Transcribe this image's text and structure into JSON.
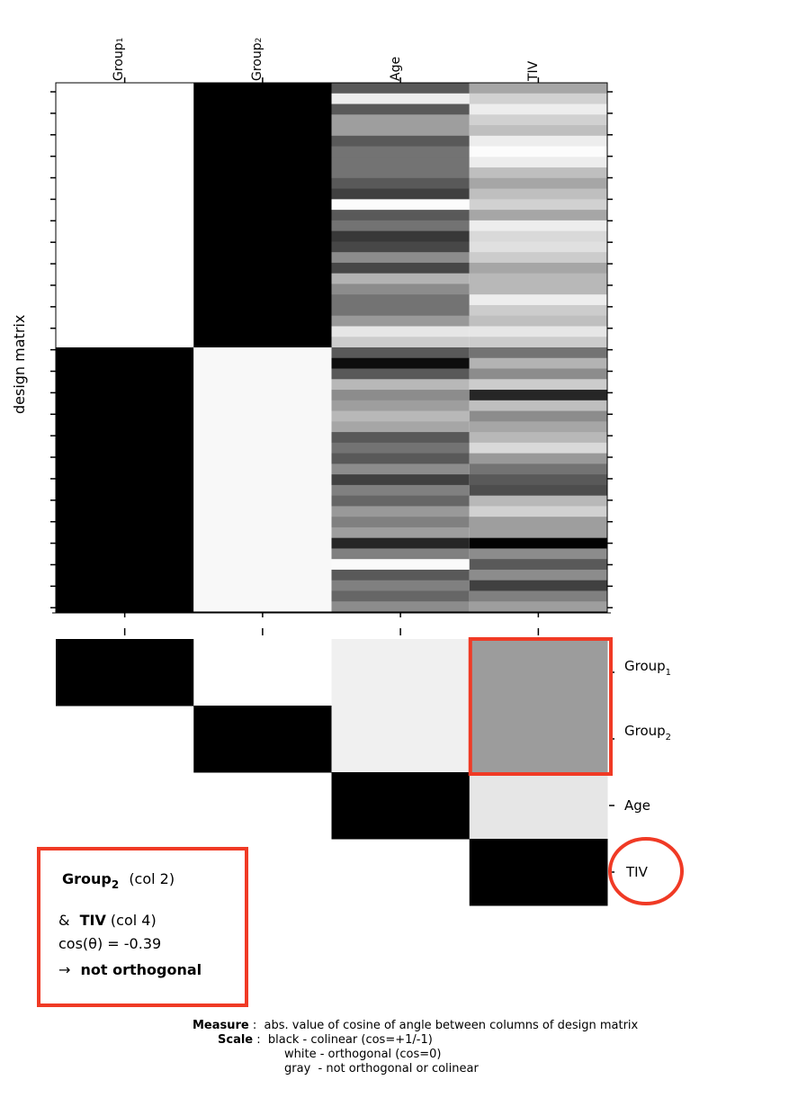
{
  "figure": {
    "y_axis_label": "design matrix",
    "columns": [
      {
        "name": "Group",
        "subscript": "1"
      },
      {
        "name": "Group",
        "subscript": "2"
      },
      {
        "name": "Age",
        "subscript": ""
      },
      {
        "name": "TIV",
        "subscript": ""
      }
    ],
    "row_labels": [
      {
        "name": "Group",
        "subscript": "1"
      },
      {
        "name": "Group",
        "subscript": "2"
      },
      {
        "name": "Age",
        "subscript": ""
      },
      {
        "name": "TIV",
        "subscript": ""
      }
    ]
  },
  "chart_data": {
    "type": "heatmap",
    "design_matrix": {
      "rows": 50,
      "group_split_row": 25,
      "age_gray": [
        0.35,
        0.93,
        0.35,
        0.62,
        0.62,
        0.35,
        0.45,
        0.45,
        0.45,
        0.35,
        0.25,
        0.99,
        0.35,
        0.45,
        0.22,
        0.28,
        0.55,
        0.28,
        0.7,
        0.55,
        0.45,
        0.45,
        0.6,
        0.9,
        0.8,
        0.35,
        0.05,
        0.35,
        0.72,
        0.55,
        0.62,
        0.72,
        0.65,
        0.35,
        0.45,
        0.35,
        0.55,
        0.25,
        0.5,
        0.4,
        0.6,
        0.5,
        0.62,
        0.15,
        0.5,
        0.98,
        0.35,
        0.5,
        0.4,
        0.55
      ],
      "tiv_gray": [
        0.65,
        0.82,
        0.93,
        0.82,
        0.75,
        0.93,
        0.99,
        0.93,
        0.75,
        0.65,
        0.75,
        0.82,
        0.65,
        0.93,
        0.85,
        0.88,
        0.8,
        0.65,
        0.72,
        0.72,
        0.93,
        0.8,
        0.75,
        0.9,
        0.8,
        0.45,
        0.7,
        0.55,
        0.8,
        0.15,
        0.75,
        0.55,
        0.65,
        0.72,
        0.85,
        0.6,
        0.45,
        0.35,
        0.3,
        0.72,
        0.82,
        0.62,
        0.62,
        0.01,
        0.55,
        0.35,
        0.55,
        0.25,
        0.5,
        0.62
      ]
    },
    "orthogonality": {
      "matrix": [
        [
          1,
          0,
          0.06,
          0.39
        ],
        [
          null,
          1,
          0.06,
          0.39
        ],
        [
          null,
          null,
          1,
          0.1
        ],
        [
          null,
          null,
          null,
          1
        ]
      ]
    },
    "highlight_cell": {
      "row": 1,
      "col": 3,
      "rows_spanned": [
        0,
        1
      ]
    }
  },
  "annotation": {
    "line1_name": "Group",
    "line1_sub": "2",
    "line1_col": "(col 2)",
    "line2_prefix": "&",
    "line2_name": "TIV",
    "line2_col": "(col 4)",
    "line3": "cos(θ) = -0.39",
    "line4_arrow": "→",
    "line4": "not orthogonal"
  },
  "legend": {
    "measure_key": "Measure",
    "measure_text": "abs. value of cosine of angle between columns of design matrix",
    "scale_key": "Scale",
    "scale_lines": [
      "black - colinear (cos=+1/-1)",
      "white - orthogonal (cos=0)",
      "gray  - not orthogonal or colinear"
    ]
  },
  "colors": {
    "highlight": "#f03a25",
    "black": "#000000",
    "white": "#ffffff"
  }
}
